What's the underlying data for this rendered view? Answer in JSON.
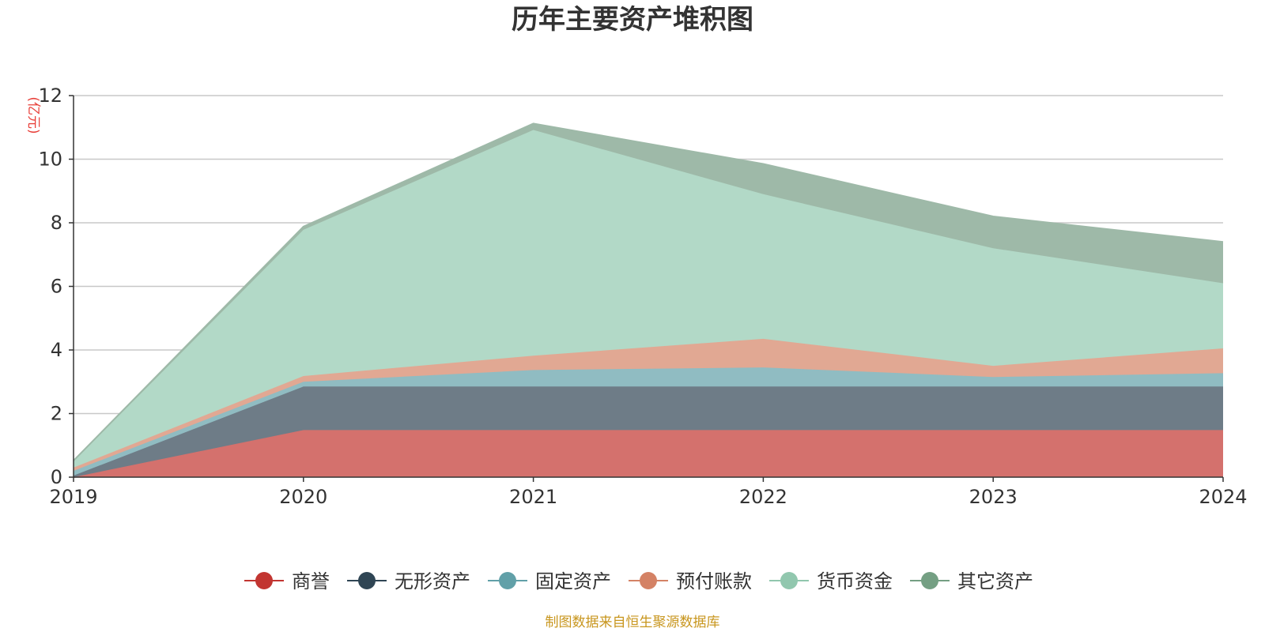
{
  "title": "历年主要资产堆积图",
  "source_note": "制图数据来自恒生聚源数据库",
  "chart_data": {
    "type": "area",
    "stacked": true,
    "title": "历年主要资产堆积图",
    "ylabel": "(亿元)",
    "ylim": [
      0,
      12
    ],
    "yticks": [
      "0",
      "2",
      "4",
      "6",
      "8",
      "10",
      "12"
    ],
    "ytick_values": [
      0,
      2,
      4,
      6,
      8,
      10,
      12
    ],
    "grid": true,
    "legend_position": "bottom",
    "categories": [
      "2019",
      "2020",
      "2021",
      "2022",
      "2023",
      "2024"
    ],
    "series": [
      {
        "name": "商誉",
        "color": "#c23531",
        "fill": "#d4716d",
        "values": [
          0.0,
          1.48,
          1.48,
          1.48,
          1.48,
          1.48
        ]
      },
      {
        "name": "无形资产",
        "color": "#2f4554",
        "fill": "#6e7c87",
        "values": [
          0.05,
          1.37,
          1.37,
          1.37,
          1.37,
          1.37
        ]
      },
      {
        "name": "固定资产",
        "color": "#61a0a8",
        "fill": "#90bcc2",
        "values": [
          0.15,
          0.15,
          0.52,
          0.6,
          0.3,
          0.42
        ]
      },
      {
        "name": "预付账款",
        "color": "#d48265",
        "fill": "#e1a893",
        "values": [
          0.1,
          0.18,
          0.45,
          0.9,
          0.35,
          0.78
        ]
      },
      {
        "name": "货币资金",
        "color": "#91c7ae",
        "fill": "#b2d9c7",
        "values": [
          0.2,
          4.6,
          7.1,
          4.55,
          3.7,
          2.05
        ]
      },
      {
        "name": "其它资产",
        "color": "#749f83",
        "fill": "#9eb9a8",
        "values": [
          0.02,
          0.1,
          0.2,
          0.95,
          1.0,
          1.3
        ]
      }
    ]
  }
}
